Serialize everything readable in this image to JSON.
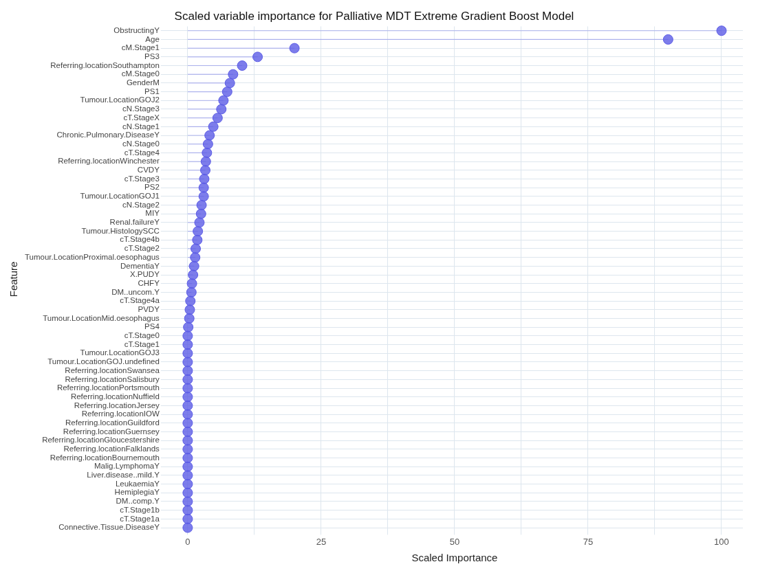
{
  "chart_data": {
    "type": "lollipop",
    "orientation": "horizontal",
    "title": "Scaled variable importance for Palliative MDT Extreme Gradient Boost Model",
    "xlabel": "Scaled Importance",
    "ylabel": "Feature",
    "categories": [
      "ObstructingY",
      "Age",
      "cM.Stage1",
      "PS3",
      "Referring.locationSouthampton",
      "cM.Stage0",
      "GenderM",
      "PS1",
      "Tumour.LocationGOJ2",
      "cN.Stage3",
      "cT.StageX",
      "cN.Stage1",
      "Chronic.Pulmonary.DiseaseY",
      "cN.Stage0",
      "cT.Stage4",
      "Referring.locationWinchester",
      "CVDY",
      "cT.Stage3",
      "PS2",
      "Tumour.LocationGOJ1",
      "cN.Stage2",
      "MIY",
      "Renal.failureY",
      "Tumour.HistologySCC",
      "cT.Stage4b",
      "cT.Stage2",
      "Tumour.LocationProximal.oesophagus",
      "DementiaY",
      "X.PUDY",
      "CHFY",
      "DM..uncom.Y",
      "cT.Stage4a",
      "PVDY",
      "Tumour.LocationMid.oesophagus",
      "PS4",
      "cT.Stage0",
      "cT.Stage1",
      "Tumour.LocationGOJ3",
      "Tumour.LocationGOJ.undefined",
      "Referring.locationSwansea",
      "Referring.locationSalisbury",
      "Referring.locationPortsmouth",
      "Referring.locationNuffield",
      "Referring.locationJersey",
      "Referring.locationIOW",
      "Referring.locationGuildford",
      "Referring.locationGuernsey",
      "Referring.locationGloucestershire",
      "Referring.locationFalklands",
      "Referring.locationBournemouth",
      "Malig.LymphomaY",
      "Liver.disease..mild.Y",
      "LeukaemiaY",
      "HemiplegiaY",
      "DM..comp.Y",
      "cT.Stage1b",
      "cT.Stage1a",
      "Connective.Tissue.DiseaseY"
    ],
    "values": [
      100,
      90,
      20,
      13.1,
      10.2,
      8.5,
      7.9,
      7.4,
      6.7,
      6.3,
      5.6,
      4.8,
      4.1,
      3.8,
      3.6,
      3.4,
      3.3,
      3.1,
      3.0,
      3.0,
      2.6,
      2.5,
      2.2,
      1.9,
      1.8,
      1.5,
      1.4,
      1.2,
      1.0,
      0.8,
      0.7,
      0.5,
      0.4,
      0.3,
      0.1,
      0,
      0,
      0,
      0,
      0,
      0,
      0,
      0,
      0,
      0,
      0,
      0,
      0,
      0,
      0,
      0,
      0,
      0,
      0,
      0,
      0,
      0,
      0
    ],
    "color": "#5c5ce6",
    "xlim": [
      -4,
      104
    ],
    "xticks": [
      0,
      {
        "value": 12.5,
        "label": null
      },
      25,
      {
        "value": 37.5,
        "label": null
      },
      50,
      {
        "value": 62.5,
        "label": null
      },
      75,
      {
        "value": 87.5,
        "label": null
      },
      100
    ],
    "grid": true,
    "legend": false,
    "marker": "circle"
  }
}
